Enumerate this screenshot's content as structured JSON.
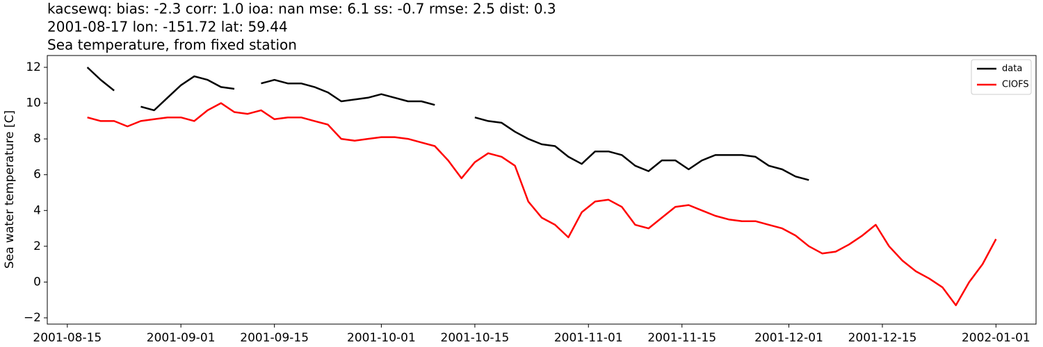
{
  "chart_data": {
    "type": "line",
    "title_lines": [
      "kacsewq: bias: -2.3  corr: 1.0  ioa: nan  mse: 6.1  ss: -0.7  rmse: 2.5  dist: 0.3",
      "2001-08-17 lon: -151.72 lat: 59.44",
      "Sea temperature, from fixed station"
    ],
    "y_label": "Sea water temperature [C]",
    "x": [
      "2001-08-18",
      "2001-08-20",
      "2001-08-22",
      "2001-08-24",
      "2001-08-26",
      "2001-08-28",
      "2001-08-30",
      "2001-09-01",
      "2001-09-03",
      "2001-09-05",
      "2001-09-07",
      "2001-09-09",
      "2001-09-11",
      "2001-09-13",
      "2001-09-15",
      "2001-09-17",
      "2001-09-19",
      "2001-09-21",
      "2001-09-23",
      "2001-09-25",
      "2001-09-27",
      "2001-09-29",
      "2001-10-01",
      "2001-10-03",
      "2001-10-05",
      "2001-10-07",
      "2001-10-09",
      "2001-10-11",
      "2001-10-13",
      "2001-10-15",
      "2001-10-17",
      "2001-10-19",
      "2001-10-21",
      "2001-10-23",
      "2001-10-25",
      "2001-10-27",
      "2001-10-29",
      "2001-10-31",
      "2001-11-02",
      "2001-11-04",
      "2001-11-06",
      "2001-11-08",
      "2001-11-10",
      "2001-11-12",
      "2001-11-14",
      "2001-11-16",
      "2001-11-18",
      "2001-11-20",
      "2001-11-22",
      "2001-11-24",
      "2001-11-26",
      "2001-11-28",
      "2001-11-30",
      "2001-12-02",
      "2001-12-04",
      "2001-12-06",
      "2001-12-08",
      "2001-12-10",
      "2001-12-12",
      "2001-12-14",
      "2001-12-16",
      "2001-12-18",
      "2001-12-20",
      "2001-12-22",
      "2001-12-24",
      "2001-12-26",
      "2001-12-28",
      "2001-12-30",
      "2002-01-01"
    ],
    "series": [
      {
        "name": "data",
        "color": "#000000",
        "values": [
          12.0,
          11.3,
          10.7,
          null,
          9.8,
          9.6,
          10.3,
          11.0,
          11.5,
          11.3,
          10.9,
          10.8,
          null,
          11.1,
          11.3,
          11.1,
          11.1,
          10.9,
          10.6,
          10.1,
          10.2,
          10.3,
          10.5,
          10.3,
          10.1,
          10.1,
          9.9,
          null,
          null,
          9.2,
          9.0,
          8.9,
          8.4,
          8.0,
          7.7,
          7.6,
          7.0,
          6.6,
          7.3,
          7.3,
          7.1,
          6.5,
          6.2,
          6.8,
          6.8,
          6.3,
          6.8,
          7.1,
          7.1,
          7.1,
          7.0,
          6.5,
          6.3,
          5.9,
          5.7,
          null,
          null,
          null,
          null,
          null,
          null,
          null,
          null,
          null,
          null,
          null,
          null,
          null,
          null
        ]
      },
      {
        "name": "CIOFS",
        "color": "#ff0000",
        "values": [
          9.2,
          9.0,
          9.0,
          8.7,
          9.0,
          9.1,
          9.2,
          9.2,
          9.0,
          9.6,
          10.0,
          9.5,
          9.4,
          9.6,
          9.1,
          9.2,
          9.2,
          9.0,
          8.8,
          8.0,
          7.9,
          8.0,
          8.1,
          8.1,
          8.0,
          7.8,
          7.6,
          6.8,
          5.8,
          6.7,
          7.2,
          7.0,
          6.5,
          4.5,
          3.6,
          3.2,
          2.5,
          3.9,
          4.5,
          4.6,
          4.2,
          3.2,
          3.0,
          3.6,
          4.2,
          4.3,
          4.0,
          3.7,
          3.5,
          3.4,
          3.4,
          3.2,
          3.0,
          2.6,
          2.0,
          1.6,
          1.7,
          2.1,
          2.6,
          3.2,
          2.0,
          1.2,
          0.6,
          0.2,
          -0.3,
          -1.3,
          0.0,
          1.0,
          2.4
        ]
      }
    ],
    "xlim": [
      "2001-08-12",
      "2002-01-07"
    ],
    "xticks": [
      "2001-08-15",
      "2001-09-01",
      "2001-09-15",
      "2001-10-01",
      "2001-10-15",
      "2001-11-01",
      "2001-11-15",
      "2001-12-01",
      "2001-12-15",
      "2002-01-01"
    ],
    "ylim": [
      -2.35,
      12.66
    ],
    "yticks": [
      {
        "value": -2,
        "label": "−2"
      },
      0,
      2,
      4,
      6,
      8,
      10,
      12
    ],
    "legend": "upper right"
  }
}
